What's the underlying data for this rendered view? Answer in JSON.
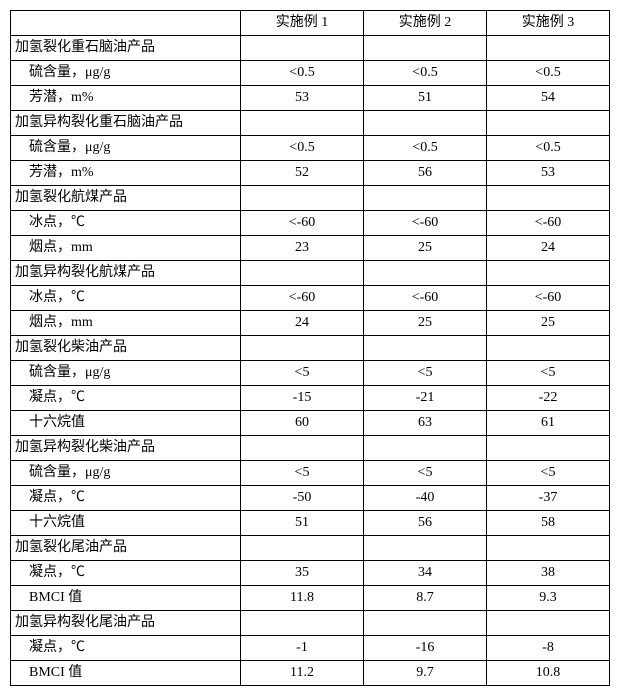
{
  "header": {
    "blank": "",
    "col1": "实施例 1",
    "col2": "实施例 2",
    "col3": "实施例 3"
  },
  "sections": [
    {
      "title": "加氢裂化重石脑油产品",
      "rows": [
        {
          "label": "硫含量，μg/g",
          "v1": "<0.5",
          "v2": "<0.5",
          "v3": "<0.5"
        },
        {
          "label": "芳潜，m%",
          "v1": "53",
          "v2": "51",
          "v3": "54"
        }
      ]
    },
    {
      "title": "加氢异构裂化重石脑油产品",
      "rows": [
        {
          "label": "硫含量，μg/g",
          "v1": "<0.5",
          "v2": "<0.5",
          "v3": "<0.5"
        },
        {
          "label": "芳潜，m%",
          "v1": "52",
          "v2": "56",
          "v3": "53"
        }
      ]
    },
    {
      "title": "加氢裂化航煤产品",
      "rows": [
        {
          "label": "冰点，℃",
          "v1": "<-60",
          "v2": "<-60",
          "v3": "<-60"
        },
        {
          "label": "烟点，mm",
          "v1": "23",
          "v2": "25",
          "v3": "24"
        }
      ]
    },
    {
      "title": "加氢异构裂化航煤产品",
      "rows": [
        {
          "label": "冰点，℃",
          "v1": "<-60",
          "v2": "<-60",
          "v3": "<-60"
        },
        {
          "label": "烟点，mm",
          "v1": "24",
          "v2": "25",
          "v3": "25"
        }
      ]
    },
    {
      "title": "加氢裂化柴油产品",
      "rows": [
        {
          "label": "硫含量，μg/g",
          "v1": "<5",
          "v2": "<5",
          "v3": "<5"
        },
        {
          "label": "凝点，℃",
          "v1": "-15",
          "v2": "-21",
          "v3": "-22"
        },
        {
          "label": "十六烷值",
          "v1": "60",
          "v2": "63",
          "v3": "61"
        }
      ]
    },
    {
      "title": "加氢异构裂化柴油产品",
      "rows": [
        {
          "label": "硫含量，μg/g",
          "v1": "<5",
          "v2": "<5",
          "v3": "<5"
        },
        {
          "label": "凝点，℃",
          "v1": "-50",
          "v2": "-40",
          "v3": "-37"
        },
        {
          "label": "十六烷值",
          "v1": "51",
          "v2": "56",
          "v3": "58"
        }
      ]
    },
    {
      "title": "加氢裂化尾油产品",
      "rows": [
        {
          "label": "凝点，℃",
          "v1": "35",
          "v2": "34",
          "v3": "38"
        },
        {
          "label": "BMCI 值",
          "v1": "11.8",
          "v2": "8.7",
          "v3": "9.3"
        }
      ]
    },
    {
      "title": "加氢异构裂化尾油产品",
      "rows": [
        {
          "label": "凝点，℃",
          "v1": "-1",
          "v2": "-16",
          "v3": "-8"
        },
        {
          "label": "BMCI 值",
          "v1": "11.2",
          "v2": "9.7",
          "v3": "10.8"
        }
      ]
    }
  ]
}
